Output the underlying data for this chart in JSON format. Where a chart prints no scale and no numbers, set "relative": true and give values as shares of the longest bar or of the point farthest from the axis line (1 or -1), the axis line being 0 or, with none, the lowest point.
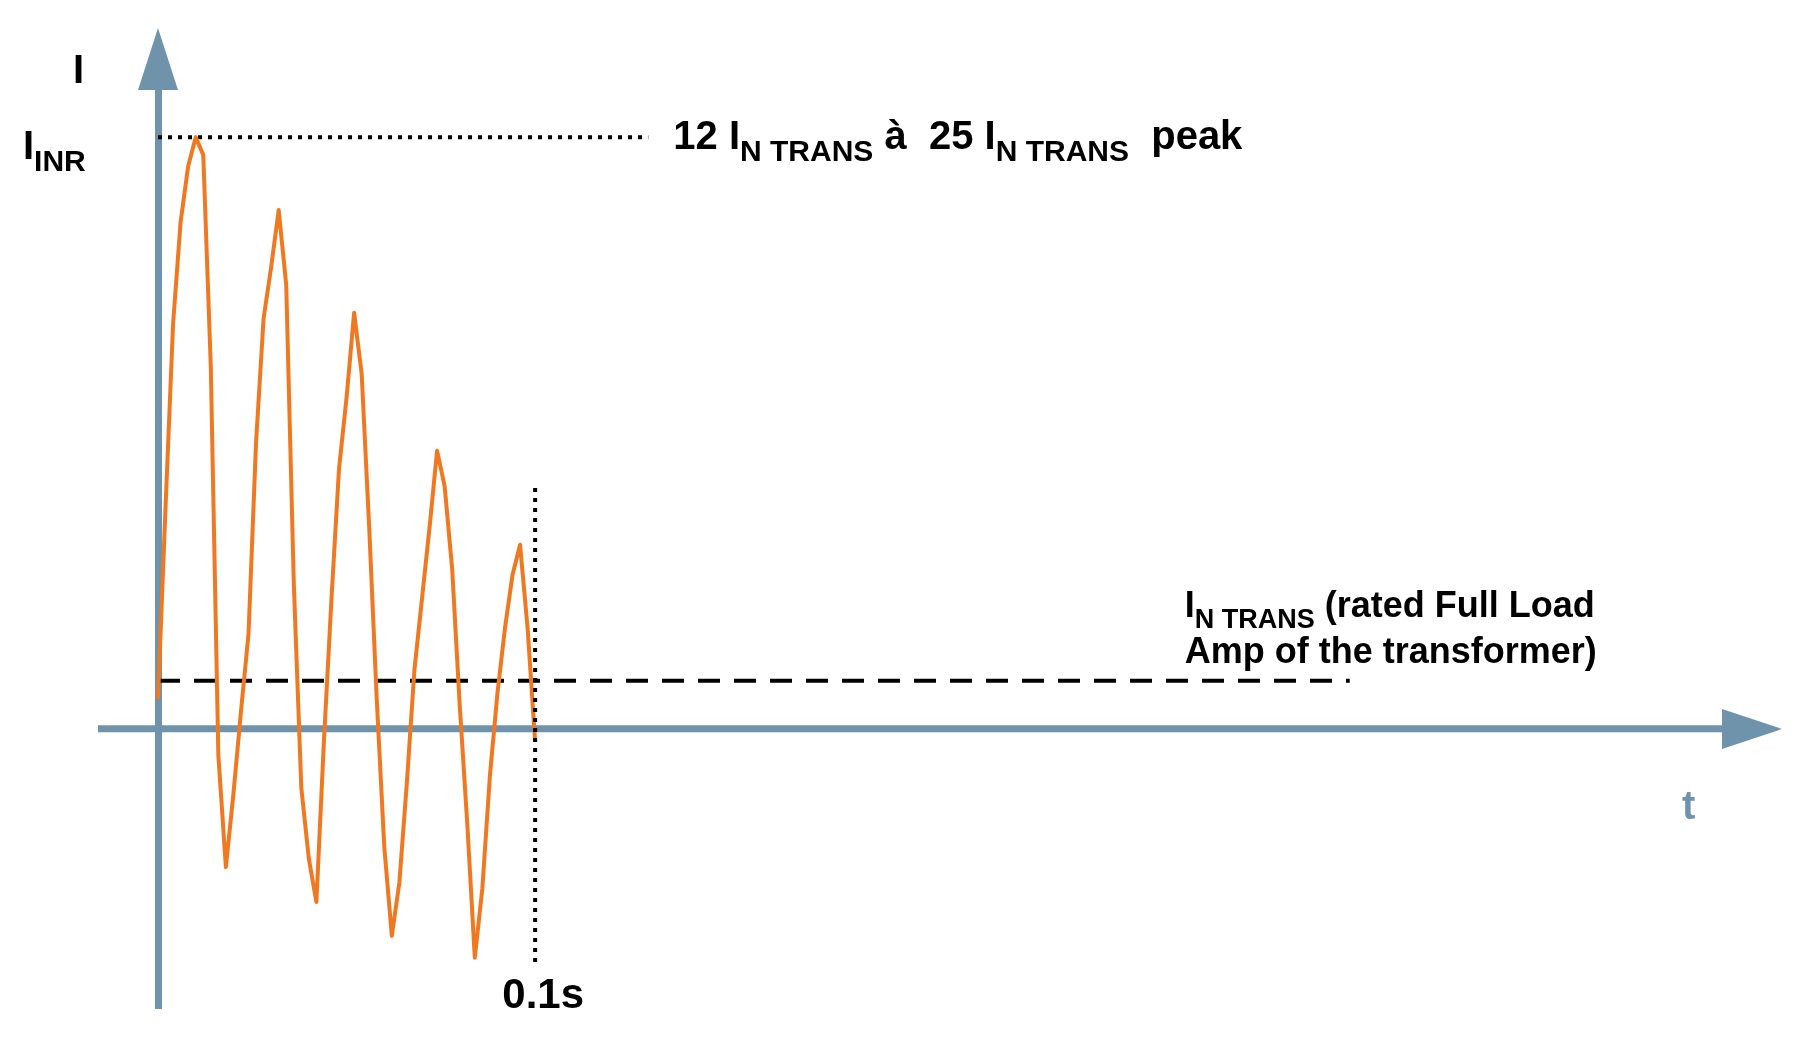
{
  "chart_data": {
    "type": "line",
    "relative": true,
    "xlabel": "t",
    "ylabel": "I",
    "marker": "none",
    "categories": [
      null,
      null,
      null,
      null,
      null,
      null,
      null,
      null,
      null,
      null,
      null,
      null,
      null,
      null,
      null,
      null,
      null,
      null,
      null,
      null,
      null,
      null,
      null,
      null,
      null,
      null,
      null,
      null,
      null,
      null,
      null,
      null,
      null,
      null,
      null,
      null,
      null,
      null,
      null,
      null,
      null,
      null,
      null,
      null,
      null,
      null,
      null,
      null,
      null,
      null,
      null,
      null,
      null,
      null,
      null,
      null,
      null,
      null,
      null,
      null,
      null,
      null,
      null,
      null,
      null,
      null,
      null,
      null,
      null,
      null,
      null,
      null,
      null,
      null,
      null,
      null,
      null,
      null,
      null,
      null,
      null,
      null,
      null,
      null,
      null,
      null,
      null,
      null,
      null,
      null,
      null,
      null,
      null,
      null,
      null,
      null,
      null,
      null,
      null,
      null,
      null,
      null,
      null,
      null,
      null,
      null,
      null,
      null,
      null,
      null,
      null,
      null,
      null,
      null,
      null,
      null,
      null,
      null,
      null,
      null,
      null,
      null,
      null,
      null,
      null,
      null,
      null,
      null,
      null,
      null,
      null,
      null,
      null,
      null,
      null,
      null,
      null,
      null,
      null,
      null,
      null,
      null,
      null,
      null,
      null,
      null,
      null,
      null,
      null,
      null,
      null,
      null,
      null,
      null,
      null,
      null,
      null,
      null,
      null,
      null,
      null,
      null,
      null,
      null,
      null,
      null,
      null,
      null,
      null,
      null,
      null,
      null,
      null,
      null,
      null,
      null,
      null,
      null,
      null,
      null,
      null,
      null,
      null,
      null,
      null,
      null,
      null,
      null,
      null,
      null,
      null,
      null,
      null,
      null,
      null,
      null,
      null,
      null,
      null,
      null,
      null,
      null,
      null,
      null,
      null,
      null,
      null,
      null,
      null,
      null,
      null
    ],
    "series": [
      {
        "color": "#f07820",
        "line_style": "solid",
        "values": [
          0.05,
          0.375,
          0.685,
          0.857,
          0.951,
          1.0,
          0.97,
          0.612,
          -0.045,
          -0.234,
          -0.11,
          0.029,
          0.16,
          0.484,
          0.694,
          0.78,
          0.877,
          0.75,
          0.247,
          -0.1,
          -0.22,
          -0.293,
          -0.02,
          0.22,
          0.44,
          0.56,
          0.703,
          0.6,
          0.34,
          0.05,
          -0.2,
          -0.35,
          -0.26,
          -0.09,
          0.1,
          0.22,
          0.34,
          0.47,
          0.41,
          0.27,
          0.04,
          -0.16,
          -0.387,
          -0.27,
          -0.08,
          0.06,
          0.17,
          0.26,
          0.311,
          0.17,
          -0.022,
          null,
          null,
          null,
          null,
          null,
          null,
          null,
          null,
          null,
          null,
          null,
          null,
          null,
          null,
          null,
          null,
          null,
          null,
          null,
          null,
          null,
          null,
          null,
          null,
          null,
          null,
          null,
          null,
          null,
          null,
          null,
          null,
          null,
          null,
          null,
          null,
          null,
          null,
          null,
          null,
          null,
          null,
          null,
          null,
          null,
          null,
          null,
          null,
          null,
          null,
          null,
          null,
          null,
          null,
          null,
          null,
          null,
          null,
          null,
          null,
          null,
          null,
          null,
          null,
          null,
          null,
          null,
          null,
          null,
          null,
          null,
          null,
          null,
          null,
          null,
          null,
          null,
          null,
          null,
          null,
          null,
          null,
          null,
          null,
          null,
          null,
          null,
          null,
          null,
          null,
          null,
          null,
          null,
          null,
          null,
          null,
          null,
          null,
          null,
          null,
          null,
          null,
          null,
          null,
          null,
          null,
          null,
          null,
          null,
          null,
          null,
          null,
          null,
          null,
          null,
          null,
          null,
          null,
          null,
          null,
          null,
          null,
          null,
          null,
          null,
          null,
          null,
          null,
          null,
          null,
          null,
          null,
          null,
          null,
          null,
          null,
          null,
          null,
          null,
          null,
          null,
          null,
          null,
          null,
          null,
          null,
          null,
          null,
          null,
          null,
          null,
          null,
          null,
          null,
          null,
          null,
          null,
          null,
          null,
          null
        ]
      },
      {
        "name": "12 I$_{N TRANS}$ à  25 I$_{N TRANS}$  peak",
        "color": "#000000",
        "line_style": "dotted",
        "values": [
          1,
          1,
          1,
          1,
          1,
          1,
          1,
          1,
          1,
          1,
          1,
          1,
          1,
          1,
          1,
          1,
          1,
          1,
          1,
          1,
          1,
          1,
          1,
          1,
          1,
          1,
          1,
          1,
          1,
          1,
          1,
          1,
          1,
          1,
          1,
          1,
          1,
          1,
          1,
          1,
          1,
          1,
          1,
          1,
          1,
          1,
          1,
          1,
          1,
          1,
          1,
          1,
          1,
          1,
          1,
          1,
          1,
          1,
          1,
          1,
          1,
          1,
          1,
          1,
          1,
          1,
          null,
          null,
          null,
          null,
          null,
          null,
          null,
          null,
          null,
          null,
          null,
          null,
          null,
          null,
          null,
          null,
          null,
          null,
          null,
          null,
          null,
          null,
          null,
          null,
          null,
          null,
          null,
          null,
          null,
          null,
          null,
          null,
          null,
          null,
          null,
          null,
          null,
          null,
          null,
          null,
          null,
          null,
          null,
          null,
          null,
          null,
          null,
          null,
          null,
          null,
          null,
          null,
          null,
          null,
          null,
          null,
          null,
          null,
          null,
          null,
          null,
          null,
          null,
          null,
          null,
          null,
          null,
          null,
          null,
          null,
          null,
          null,
          null,
          null,
          null,
          null,
          null,
          null,
          null,
          null,
          null,
          null,
          null,
          null,
          null,
          null,
          null,
          null,
          null,
          null,
          null,
          null,
          null,
          null,
          null,
          null,
          null,
          null,
          null,
          null,
          null,
          null,
          null,
          null,
          null,
          null,
          null,
          null,
          null,
          null,
          null,
          null,
          null,
          null,
          null,
          null,
          null,
          null,
          null,
          null,
          null,
          null,
          null,
          null,
          null,
          null,
          null,
          null,
          null,
          null,
          null,
          null,
          null,
          null,
          null,
          null,
          null,
          null,
          null,
          null,
          null,
          null,
          null,
          null,
          null
        ]
      },
      {
        "name": "I$_{N TRANS}$ (rated Full Load Amp of the transformer)",
        "color": "#000000",
        "line_style": "dashed",
        "values": [
          0.081,
          0.081,
          0.081,
          0.081,
          0.081,
          0.081,
          0.081,
          0.081,
          0.081,
          0.081,
          0.081,
          0.081,
          0.081,
          0.081,
          0.081,
          0.081,
          0.081,
          0.081,
          0.081,
          0.081,
          0.081,
          0.081,
          0.081,
          0.081,
          0.081,
          0.081,
          0.081,
          0.081,
          0.081,
          0.081,
          0.081,
          0.081,
          0.081,
          0.081,
          0.081,
          0.081,
          0.081,
          0.081,
          0.081,
          0.081,
          0.081,
          0.081,
          0.081,
          0.081,
          0.081,
          0.081,
          0.081,
          0.081,
          0.081,
          0.081,
          0.081,
          0.081,
          0.081,
          0.081,
          0.081,
          0.081,
          0.081,
          0.081,
          0.081,
          0.081,
          0.081,
          0.081,
          0.081,
          0.081,
          0.081,
          0.081,
          0.081,
          0.081,
          0.081,
          0.081,
          0.081,
          0.081,
          0.081,
          0.081,
          0.081,
          0.081,
          0.081,
          0.081,
          0.081,
          0.081,
          0.081,
          0.081,
          0.081,
          0.081,
          0.081,
          0.081,
          0.081,
          0.081,
          0.081,
          0.081,
          0.081,
          0.081,
          0.081,
          0.081,
          0.081,
          0.081,
          0.081,
          0.081,
          0.081,
          0.081,
          0.081,
          0.081,
          0.081,
          0.081,
          0.081,
          0.081,
          0.081,
          0.081,
          0.081,
          0.081,
          0.081,
          0.081,
          0.081,
          0.081,
          0.081,
          0.081,
          0.081,
          0.081,
          0.081,
          0.081,
          0.081,
          0.081,
          0.081,
          0.081,
          0.081,
          0.081,
          0.081,
          0.081,
          0.081,
          0.081,
          0.081,
          0.081,
          0.081,
          0.081,
          0.081,
          0.081,
          0.081,
          0.081,
          0.081,
          0.081,
          0.081,
          0.081,
          0.081,
          0.081,
          0.081,
          0.081,
          0.081,
          0.081,
          0.081,
          0.081,
          0.081,
          0.081,
          0.081,
          0.081,
          0.081,
          0.081,
          0.081,
          0.081,
          0.081,
          null,
          null,
          null,
          null,
          null,
          null,
          null,
          null,
          null,
          null,
          null,
          null,
          null,
          null,
          null,
          null,
          null,
          null,
          null,
          null,
          null,
          null,
          null,
          null,
          null,
          null,
          null,
          null,
          null,
          null,
          null,
          null,
          null,
          null,
          null,
          null,
          null,
          null,
          null,
          null,
          null,
          null,
          null,
          null,
          null,
          null,
          null,
          null,
          null,
          null,
          null,
          null
        ]
      }
    ],
    "ref_lines": [
      {
        "axis": "y",
        "value": 0,
        "color": "#6f93ab",
        "line_style": "solid"
      }
    ],
    "annotations": [
      "I$_{INR}$",
      "0.1s"
    ]
  }
}
